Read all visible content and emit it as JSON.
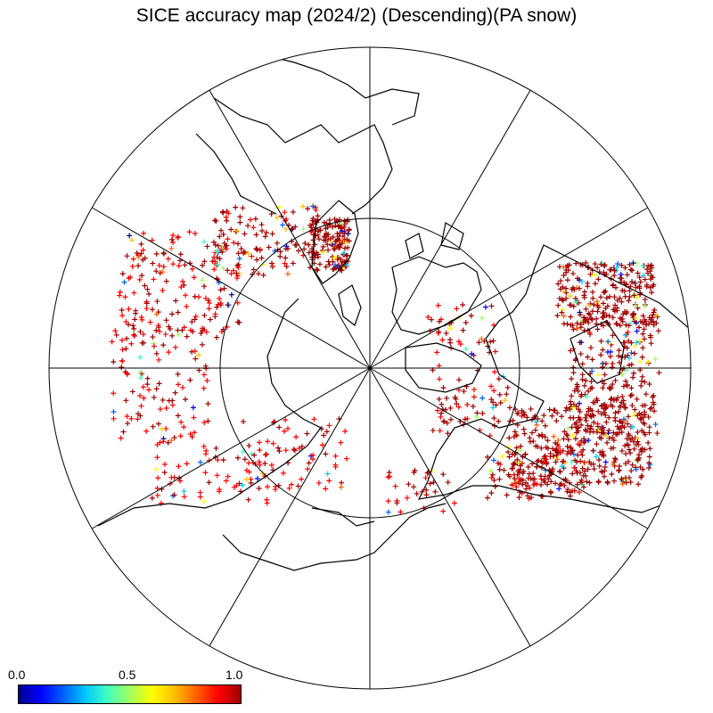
{
  "title": "SICE accuracy map (2024/2) (Descending)(PA snow)",
  "projection": "north-polar-stereographic",
  "graticule": {
    "meridian_step_deg": 30,
    "inner_parallel_deg": 60
  },
  "marker": {
    "shape": "plus",
    "value_range": [
      0,
      1
    ]
  },
  "colorbar": {
    "min_label": "0.0",
    "mid_label": "0.5",
    "max_label": "1.0",
    "colors": [
      "#00008f",
      "#0000ff",
      "#0060ff",
      "#00c8ff",
      "#40ffc0",
      "#a0ff60",
      "#ffff00",
      "#ffc000",
      "#ff6000",
      "#ff0000",
      "#a00000"
    ]
  },
  "colors": {
    "dominant_marker": "#a00000",
    "coastline": "#000000",
    "grid": "#000000"
  }
}
